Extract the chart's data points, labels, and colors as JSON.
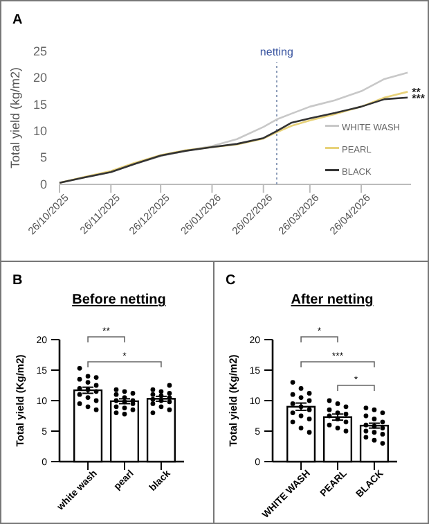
{
  "chart_data": [
    {
      "type": "line",
      "annotations": [
        "A",
        {
          "text": "**",
          "x": "2026-05-24",
          "y": 17.4
        },
        {
          "text": "***",
          "x": "2026-05-24",
          "y": 16.3
        }
      ],
      "ylabel": "Total yield (kg/m2)",
      "legend": "right",
      "grid": false,
      "marker": "none",
      "line_style": "solid",
      "xlim": [
        "2025-10-26",
        "2026-05-26"
      ],
      "xticks": [
        {
          "value": "2025-10-26",
          "label": "26/10/2025"
        },
        {
          "value": "2025-11-26",
          "label": "26/11/2025"
        },
        {
          "value": "2025-12-26",
          "label": "26/12/2025"
        },
        {
          "value": "2026-01-26",
          "label": "26/01/2026"
        },
        {
          "value": "2026-02-26",
          "label": "26/02/2026"
        },
        {
          "value": "2026-03-26",
          "label": "26/03/2026"
        },
        {
          "value": "2026-04-26",
          "label": "26/04/2026"
        }
      ],
      "ylim": [
        0,
        25
      ],
      "yticks": [
        0,
        5,
        10,
        15,
        20,
        25
      ],
      "ref_lines": [
        {
          "axis": "x",
          "value": "2026-03-06",
          "label": "netting",
          "color": "#8a9bb8",
          "line_style": "dotted"
        }
      ],
      "series": [
        {
          "name": "WHITE WASH",
          "color": "#c8c8c8",
          "x": [
            "2025-10-26",
            "2025-11-10",
            "2025-11-26",
            "2025-12-10",
            "2025-12-26",
            "2026-01-10",
            "2026-01-26",
            "2026-02-10",
            "2026-02-26",
            "2026-03-06",
            "2026-03-15",
            "2026-03-26",
            "2026-04-10",
            "2026-04-26",
            "2026-05-10",
            "2026-05-24"
          ],
          "values": [
            0.3,
            1.3,
            2.3,
            3.8,
            5.3,
            6.3,
            7.2,
            8.5,
            10.8,
            12.2,
            13.3,
            14.6,
            15.8,
            17.5,
            19.8,
            21.0
          ]
        },
        {
          "name": "PEARL",
          "color": "#e8d27a",
          "x": [
            "2025-10-26",
            "2025-11-10",
            "2025-11-26",
            "2025-12-10",
            "2025-12-26",
            "2026-01-10",
            "2026-01-26",
            "2026-02-10",
            "2026-02-26",
            "2026-03-06",
            "2026-03-15",
            "2026-03-26",
            "2026-04-10",
            "2026-04-26",
            "2026-05-10",
            "2026-05-24"
          ],
          "values": [
            0.3,
            1.4,
            2.5,
            4.0,
            5.5,
            6.4,
            7.0,
            7.5,
            8.6,
            9.8,
            11.0,
            12.0,
            13.2,
            14.6,
            16.3,
            17.4
          ]
        },
        {
          "name": "BLACK",
          "color": "#333333",
          "x": [
            "2025-10-26",
            "2025-11-10",
            "2025-11-26",
            "2025-12-10",
            "2025-12-26",
            "2026-01-10",
            "2026-01-26",
            "2026-02-10",
            "2026-02-26",
            "2026-03-06",
            "2026-03-15",
            "2026-03-26",
            "2026-04-10",
            "2026-04-26",
            "2026-05-10",
            "2026-05-24"
          ],
          "values": [
            0.3,
            1.3,
            2.3,
            3.8,
            5.4,
            6.3,
            7.0,
            7.6,
            8.7,
            10.0,
            11.6,
            12.4,
            13.4,
            14.6,
            16.0,
            16.3
          ]
        }
      ]
    },
    {
      "type": "bar",
      "title": "Before netting",
      "annotations": [
        "B",
        "**",
        "*"
      ],
      "ylabel": "Total yield (Kg/m2)",
      "categories": [
        "white wash",
        "pearl",
        "black"
      ],
      "ylim": [
        0,
        20
      ],
      "yticks": [
        0,
        5,
        10,
        15,
        20
      ],
      "marker": "circle",
      "series": [
        {
          "type": "bar",
          "color": "#ffffff",
          "values": [
            11.7,
            9.9,
            10.3
          ],
          "errors": [
            0.5,
            0.4,
            0.4
          ]
        },
        {
          "type": "scatter",
          "color": "#000000",
          "x": [
            "white wash",
            "white wash",
            "white wash",
            "white wash",
            "white wash",
            "white wash",
            "white wash",
            "white wash",
            "white wash",
            "white wash",
            "white wash",
            "white wash",
            "white wash",
            "white wash",
            "white wash",
            "pearl",
            "pearl",
            "pearl",
            "pearl",
            "pearl",
            "pearl",
            "pearl",
            "pearl",
            "pearl",
            "pearl",
            "pearl",
            "pearl",
            "pearl",
            "pearl",
            "black",
            "black",
            "black",
            "black",
            "black",
            "black",
            "black",
            "black",
            "black",
            "black",
            "black",
            "black",
            "black",
            "black"
          ],
          "values": [
            15.3,
            14,
            13.8,
            13.5,
            13,
            12.5,
            12,
            11.8,
            11.5,
            11,
            10.5,
            10,
            9.5,
            9,
            8.5,
            11.8,
            11.5,
            11.2,
            11,
            10.5,
            10,
            10,
            9.8,
            9.5,
            9,
            8.8,
            8.5,
            8,
            7.8,
            12.5,
            11.8,
            11.5,
            11.2,
            11,
            10.8,
            10.5,
            10.2,
            10,
            9.8,
            9.5,
            9,
            8.5,
            8
          ]
        }
      ]
    },
    {
      "type": "bar",
      "title": "After netting",
      "annotations": [
        "C",
        "*",
        "***",
        "*"
      ],
      "ylabel": "Total yield (Kg/m2)",
      "categories": [
        "WHITE WASH",
        "PEARL",
        "BLACK"
      ],
      "ylim": [
        0,
        20
      ],
      "yticks": [
        0,
        5,
        10,
        15,
        20
      ],
      "marker": "circle",
      "series": [
        {
          "type": "bar",
          "color": "#ffffff",
          "values": [
            9.0,
            7.3,
            5.9
          ],
          "errors": [
            0.6,
            0.5,
            0.4
          ]
        },
        {
          "type": "scatter",
          "color": "#000000",
          "x": [
            "WHITE WASH",
            "WHITE WASH",
            "WHITE WASH",
            "WHITE WASH",
            "WHITE WASH",
            "WHITE WASH",
            "WHITE WASH",
            "WHITE WASH",
            "WHITE WASH",
            "WHITE WASH",
            "WHITE WASH",
            "WHITE WASH",
            "WHITE WASH",
            "WHITE WASH",
            "WHITE WASH",
            "PEARL",
            "PEARL",
            "PEARL",
            "PEARL",
            "PEARL",
            "PEARL",
            "PEARL",
            "PEARL",
            "PEARL",
            "PEARL",
            "PEARL",
            "PEARL",
            "BLACK",
            "BLACK",
            "BLACK",
            "BLACK",
            "BLACK",
            "BLACK",
            "BLACK",
            "BLACK",
            "BLACK",
            "BLACK",
            "BLACK",
            "BLACK",
            "BLACK",
            "BLACK",
            "BLACK"
          ],
          "values": [
            13,
            12,
            11.2,
            11,
            10.5,
            10,
            9.5,
            9,
            8.5,
            8,
            7.5,
            7,
            6.5,
            5.5,
            4.8,
            10,
            9.5,
            9,
            8.5,
            8,
            7.8,
            7.5,
            7,
            6.5,
            6,
            5.5,
            5,
            8.8,
            8.5,
            8,
            7.5,
            7,
            6.5,
            6,
            5.8,
            5.5,
            5,
            4.8,
            4.5,
            4,
            3.5,
            3
          ]
        }
      ]
    }
  ]
}
